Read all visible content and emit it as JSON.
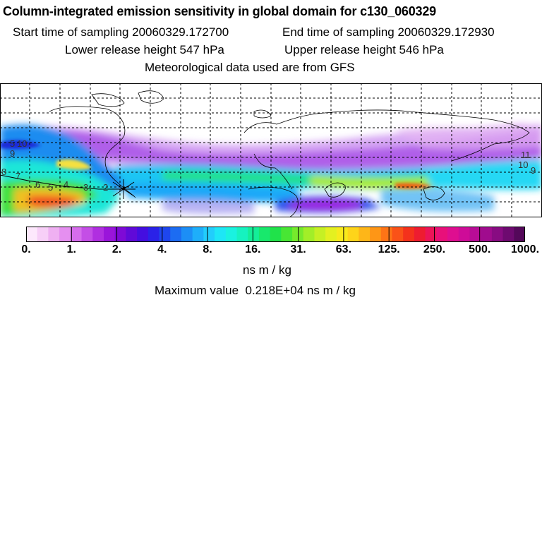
{
  "header": {
    "title": "Column-integrated emission sensitivity in global domain for c130_060329",
    "start_time": "Start time of sampling 20060329.172700",
    "end_time": "End time of sampling 20060329.172930",
    "lower_release": "Lower release height  547 hPa",
    "upper_release": "Upper release height  546 hPa",
    "met_data": "Meteorological data used are from GFS"
  },
  "map": {
    "background": "#ffffff",
    "grid_style": "dashed",
    "coastlines": true,
    "track_labels_left": [
      "5",
      "10",
      "9",
      "8",
      "7",
      "6",
      "5",
      "4",
      "3",
      "2"
    ],
    "track_labels_right": [
      "11",
      "10",
      "9"
    ]
  },
  "colorbar": {
    "colors": [
      "#fde8fc",
      "#f7cff7",
      "#efb0f2",
      "#e58ff0",
      "#d66dec",
      "#c44ee6",
      "#b02fe0",
      "#9a15da",
      "#7e0ad6",
      "#600ad8",
      "#440ee0",
      "#2a22e8",
      "#1e46ee",
      "#1c6cf2",
      "#1c8ef6",
      "#1eaefa",
      "#22cdfc",
      "#1ee6f6",
      "#1af2e0",
      "#16f2c0",
      "#14ee98",
      "#18e86c",
      "#20e24a",
      "#48e634",
      "#76ea2c",
      "#a2ee28",
      "#c6f024",
      "#e4f020",
      "#f8ea1c",
      "#fed41a",
      "#feb618",
      "#fe9616",
      "#fe7416",
      "#fa5218",
      "#f4321c",
      "#ee1c30",
      "#ec1458",
      "#e8107a",
      "#de0e90",
      "#ce0c98",
      "#b80c96",
      "#a00c8e",
      "#880c82",
      "#6e0a70",
      "#54085a"
    ],
    "tick_labels": [
      "0.",
      "1.",
      "2.",
      "4.",
      "8.",
      "16.",
      "31.",
      "63.",
      "125.",
      "250.",
      "500.",
      "1000."
    ],
    "unit": "ns m / kg"
  },
  "footer": {
    "max_label": "Maximum value",
    "max_value": "0.218E+04",
    "max_unit": "ns m / kg"
  }
}
